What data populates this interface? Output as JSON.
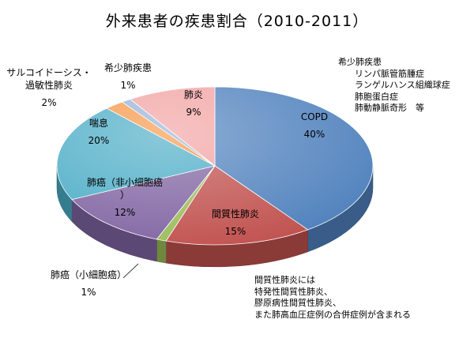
{
  "chart_data": {
    "type": "pie",
    "title": "外来患者の疾患割合（2010-2011）",
    "slices": [
      {
        "label": "COPD",
        "value": 40,
        "value_label": "40%",
        "color": "#4f81bd"
      },
      {
        "label": "間質性肺炎",
        "value": 15,
        "value_label": "15%",
        "color": "#c0504d"
      },
      {
        "label": "肺癌（小細胞癌）",
        "value": 1,
        "value_label": "1%",
        "color": "#9bbb59"
      },
      {
        "label": "肺癌（非小細胞癌\n）",
        "value": 12,
        "value_label": "12%",
        "color": "#8064a2"
      },
      {
        "label": "喘息",
        "value": 20,
        "value_label": "20%",
        "color": "#4bacc6"
      },
      {
        "label": "サルコイドーシス・\n過敏性肺炎",
        "value": 2,
        "value_label": "2%",
        "color": "#f79646"
      },
      {
        "label": "希少肺疾患",
        "value": 1,
        "value_label": "1%",
        "color": "#95b3d7"
      },
      {
        "label": "肺炎",
        "value": 9,
        "value_label": "9%",
        "color": "#f2a2a2"
      }
    ],
    "legend": "none",
    "annotations": [
      {
        "text": "希少肺疾患\n      リンパ脈管筋腫症\n      ランゲルハンス組織球症\n      肺胞蛋白症\n      肺動静脈奇形　等"
      },
      {
        "text": "間質性肺炎には\n特発性間質性肺炎、\n膠原病性間質性肺炎、\nまた肺高血圧症例の合併症例が含まれる"
      }
    ]
  }
}
